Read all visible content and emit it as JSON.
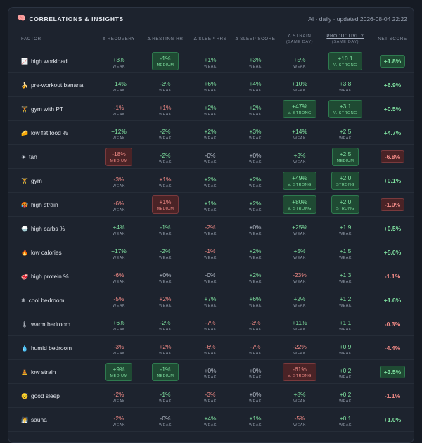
{
  "panel": {
    "title_icon": "🧠",
    "title": "CORRELATIONS & INSIGHTS",
    "meta": "AI · daily · updated 2026-08-04 22:22"
  },
  "columns": [
    {
      "key": "factor",
      "label": "FACTOR"
    },
    {
      "key": "recovery",
      "label": "Δ RECOVERY"
    },
    {
      "key": "resting_hr",
      "label": "Δ RESTING HR"
    },
    {
      "key": "sleep_hrs",
      "label": "Δ SLEEP HRS"
    },
    {
      "key": "sleep_score",
      "label": "Δ SLEEP SCORE"
    },
    {
      "key": "strain",
      "label": "Δ STRAIN",
      "sub": "(SAME DAY)"
    },
    {
      "key": "productivity",
      "label": "PRODUCTIVITY",
      "sub": "(SAME DAY)",
      "link": true
    },
    {
      "key": "net",
      "label": "NET SCORE"
    }
  ],
  "rows": [
    {
      "icon": "📈",
      "factor": "high workload",
      "cells": [
        {
          "v": "+3%",
          "s": "WEAK",
          "t": "pos"
        },
        {
          "v": "-1%",
          "s": "MEDIUM",
          "t": "pos",
          "box": true
        },
        {
          "v": "+1%",
          "s": "WEAK",
          "t": "pos"
        },
        {
          "v": "+3%",
          "s": "WEAK",
          "t": "pos"
        },
        {
          "v": "+5%",
          "s": "WEAK",
          "t": "pos"
        },
        {
          "v": "+10.1",
          "s": "V. STRONG",
          "t": "pos",
          "box": true
        }
      ],
      "net": {
        "v": "+1.8%",
        "t": "pos",
        "box": true
      }
    },
    {
      "icon": "🍌",
      "factor": "pre-workout banana",
      "cells": [
        {
          "v": "+14%",
          "s": "WEAK",
          "t": "pos"
        },
        {
          "v": "-3%",
          "s": "WEAK",
          "t": "pos"
        },
        {
          "v": "+6%",
          "s": "WEAK",
          "t": "pos"
        },
        {
          "v": "+4%",
          "s": "WEAK",
          "t": "pos"
        },
        {
          "v": "+10%",
          "s": "WEAK",
          "t": "pos"
        },
        {
          "v": "+3.8",
          "s": "WEAK",
          "t": "pos"
        }
      ],
      "net": {
        "v": "+6.9%",
        "t": "pos"
      }
    },
    {
      "icon": "🏋",
      "factor": "gym with PT",
      "cells": [
        {
          "v": "-1%",
          "s": "WEAK",
          "t": "neg"
        },
        {
          "v": "+1%",
          "s": "WEAK",
          "t": "neg"
        },
        {
          "v": "+2%",
          "s": "WEAK",
          "t": "pos"
        },
        {
          "v": "+2%",
          "s": "WEAK",
          "t": "pos"
        },
        {
          "v": "+47%",
          "s": "V. STRONG",
          "t": "pos",
          "box": true
        },
        {
          "v": "+3.1",
          "s": "V. STRONG",
          "t": "pos",
          "box": true
        }
      ],
      "net": {
        "v": "+0.5%",
        "t": "pos"
      }
    },
    {
      "icon": "🧀",
      "factor": "low fat food %",
      "cells": [
        {
          "v": "+12%",
          "s": "WEAK",
          "t": "pos"
        },
        {
          "v": "-2%",
          "s": "WEAK",
          "t": "pos"
        },
        {
          "v": "+2%",
          "s": "WEAK",
          "t": "pos"
        },
        {
          "v": "+3%",
          "s": "WEAK",
          "t": "pos"
        },
        {
          "v": "+14%",
          "s": "WEAK",
          "t": "pos"
        },
        {
          "v": "+2.5",
          "s": "WEAK",
          "t": "pos"
        }
      ],
      "net": {
        "v": "+4.7%",
        "t": "pos"
      }
    },
    {
      "icon": "☀",
      "factor": "tan",
      "cells": [
        {
          "v": "-18%",
          "s": "MEDIUM",
          "t": "neg",
          "box": true
        },
        {
          "v": "-2%",
          "s": "WEAK",
          "t": "pos"
        },
        {
          "v": "-0%",
          "s": "WEAK",
          "t": "neu"
        },
        {
          "v": "+0%",
          "s": "WEAK",
          "t": "neu"
        },
        {
          "v": "+3%",
          "s": "WEAK",
          "t": "pos"
        },
        {
          "v": "+2.5",
          "s": "MEDIUM",
          "t": "pos",
          "box": true
        }
      ],
      "net": {
        "v": "-6.8%",
        "t": "neg",
        "box": true
      }
    },
    {
      "icon": "🏋",
      "factor": "gym",
      "cells": [
        {
          "v": "-3%",
          "s": "WEAK",
          "t": "neg"
        },
        {
          "v": "+1%",
          "s": "WEAK",
          "t": "neg"
        },
        {
          "v": "+2%",
          "s": "WEAK",
          "t": "pos"
        },
        {
          "v": "+2%",
          "s": "WEAK",
          "t": "pos"
        },
        {
          "v": "+49%",
          "s": "V. STRONG",
          "t": "pos",
          "box": true
        },
        {
          "v": "+2.0",
          "s": "STRONG",
          "t": "pos",
          "box": true
        }
      ],
      "net": {
        "v": "+0.1%",
        "t": "pos"
      }
    },
    {
      "icon": "🥵",
      "factor": "high strain",
      "cells": [
        {
          "v": "-6%",
          "s": "WEAK",
          "t": "neg"
        },
        {
          "v": "+1%",
          "s": "MEDIUM",
          "t": "neg",
          "box": true
        },
        {
          "v": "+1%",
          "s": "WEAK",
          "t": "pos"
        },
        {
          "v": "+2%",
          "s": "WEAK",
          "t": "pos"
        },
        {
          "v": "+80%",
          "s": "V. STRONG",
          "t": "pos",
          "box": true
        },
        {
          "v": "+2.0",
          "s": "STRONG",
          "t": "pos",
          "box": true
        }
      ],
      "net": {
        "v": "-1.0%",
        "t": "neg",
        "box": true
      }
    },
    {
      "icon": "🍚",
      "factor": "high carbs %",
      "cells": [
        {
          "v": "+4%",
          "s": "WEAK",
          "t": "pos"
        },
        {
          "v": "-1%",
          "s": "WEAK",
          "t": "pos"
        },
        {
          "v": "-2%",
          "s": "WEAK",
          "t": "neg"
        },
        {
          "v": "+0%",
          "s": "WEAK",
          "t": "neu"
        },
        {
          "v": "+25%",
          "s": "WEAK",
          "t": "pos"
        },
        {
          "v": "+1.9",
          "s": "WEAK",
          "t": "pos"
        }
      ],
      "net": {
        "v": "+0.5%",
        "t": "pos"
      }
    },
    {
      "icon": "🔥",
      "factor": "low calories",
      "cells": [
        {
          "v": "+17%",
          "s": "WEAK",
          "t": "pos"
        },
        {
          "v": "-2%",
          "s": "WEAK",
          "t": "pos"
        },
        {
          "v": "-1%",
          "s": "WEAK",
          "t": "neg"
        },
        {
          "v": "+2%",
          "s": "WEAK",
          "t": "pos"
        },
        {
          "v": "+5%",
          "s": "WEAK",
          "t": "pos"
        },
        {
          "v": "+1.5",
          "s": "WEAK",
          "t": "pos"
        }
      ],
      "net": {
        "v": "+5.0%",
        "t": "pos"
      }
    },
    {
      "icon": "🥩",
      "factor": "high protein %",
      "cells": [
        {
          "v": "-6%",
          "s": "WEAK",
          "t": "neg"
        },
        {
          "v": "+0%",
          "s": "WEAK",
          "t": "neu"
        },
        {
          "v": "-0%",
          "s": "WEAK",
          "t": "neu"
        },
        {
          "v": "+2%",
          "s": "WEAK",
          "t": "pos"
        },
        {
          "v": "-23%",
          "s": "WEAK",
          "t": "neg"
        },
        {
          "v": "+1.3",
          "s": "WEAK",
          "t": "pos"
        }
      ],
      "net": {
        "v": "-1.1%",
        "t": "neg"
      }
    },
    {
      "icon": "❄",
      "factor": "cool bedroom",
      "cells": [
        {
          "v": "-5%",
          "s": "WEAK",
          "t": "neg"
        },
        {
          "v": "+2%",
          "s": "WEAK",
          "t": "neg"
        },
        {
          "v": "+7%",
          "s": "WEAK",
          "t": "pos"
        },
        {
          "v": "+6%",
          "s": "WEAK",
          "t": "pos"
        },
        {
          "v": "+2%",
          "s": "WEAK",
          "t": "pos"
        },
        {
          "v": "+1.2",
          "s": "WEAK",
          "t": "pos"
        }
      ],
      "net": {
        "v": "+1.6%",
        "t": "pos"
      }
    },
    {
      "icon": "🌡",
      "factor": "warm bedroom",
      "cells": [
        {
          "v": "+6%",
          "s": "WEAK",
          "t": "pos"
        },
        {
          "v": "-2%",
          "s": "WEAK",
          "t": "pos"
        },
        {
          "v": "-7%",
          "s": "WEAK",
          "t": "neg"
        },
        {
          "v": "-3%",
          "s": "WEAK",
          "t": "neg"
        },
        {
          "v": "+11%",
          "s": "WEAK",
          "t": "pos"
        },
        {
          "v": "+1.1",
          "s": "WEAK",
          "t": "pos"
        }
      ],
      "net": {
        "v": "-0.3%",
        "t": "neg"
      }
    },
    {
      "icon": "💧",
      "factor": "humid bedroom",
      "cells": [
        {
          "v": "-3%",
          "s": "WEAK",
          "t": "neg"
        },
        {
          "v": "+2%",
          "s": "WEAK",
          "t": "neg"
        },
        {
          "v": "-6%",
          "s": "WEAK",
          "t": "neg"
        },
        {
          "v": "-7%",
          "s": "WEAK",
          "t": "neg"
        },
        {
          "v": "-22%",
          "s": "WEAK",
          "t": "neg"
        },
        {
          "v": "+0.9",
          "s": "WEAK",
          "t": "pos"
        }
      ],
      "net": {
        "v": "-4.4%",
        "t": "neg"
      }
    },
    {
      "icon": "🧘",
      "factor": "low strain",
      "cells": [
        {
          "v": "+9%",
          "s": "MEDIUM",
          "t": "pos",
          "box": true
        },
        {
          "v": "-1%",
          "s": "MEDIUM",
          "t": "pos",
          "box": true
        },
        {
          "v": "+0%",
          "s": "WEAK",
          "t": "neu"
        },
        {
          "v": "+0%",
          "s": "WEAK",
          "t": "neu"
        },
        {
          "v": "-61%",
          "s": "V. STRONG",
          "t": "neg",
          "box": true
        },
        {
          "v": "+0.2",
          "s": "WEAK",
          "t": "pos"
        }
      ],
      "net": {
        "v": "+3.5%",
        "t": "pos",
        "box": true
      }
    },
    {
      "icon": "😴",
      "factor": "good sleep",
      "cells": [
        {
          "v": "-2%",
          "s": "WEAK",
          "t": "neg"
        },
        {
          "v": "-1%",
          "s": "WEAK",
          "t": "pos"
        },
        {
          "v": "-3%",
          "s": "WEAK",
          "t": "neg"
        },
        {
          "v": "+0%",
          "s": "WEAK",
          "t": "neu"
        },
        {
          "v": "+8%",
          "s": "WEAK",
          "t": "pos"
        },
        {
          "v": "+0.2",
          "s": "WEAK",
          "t": "pos"
        }
      ],
      "net": {
        "v": "-1.1%",
        "t": "neg"
      }
    },
    {
      "icon": "🧖",
      "factor": "sauna",
      "cells": [
        {
          "v": "-2%",
          "s": "WEAK",
          "t": "neg"
        },
        {
          "v": "-0%",
          "s": "WEAK",
          "t": "neu"
        },
        {
          "v": "+4%",
          "s": "WEAK",
          "t": "pos"
        },
        {
          "v": "+1%",
          "s": "WEAK",
          "t": "pos"
        },
        {
          "v": "-5%",
          "s": "WEAK",
          "t": "neg"
        },
        {
          "v": "+0.1",
          "s": "WEAK",
          "t": "pos"
        }
      ],
      "net": {
        "v": "+1.0%",
        "t": "pos"
      }
    }
  ]
}
